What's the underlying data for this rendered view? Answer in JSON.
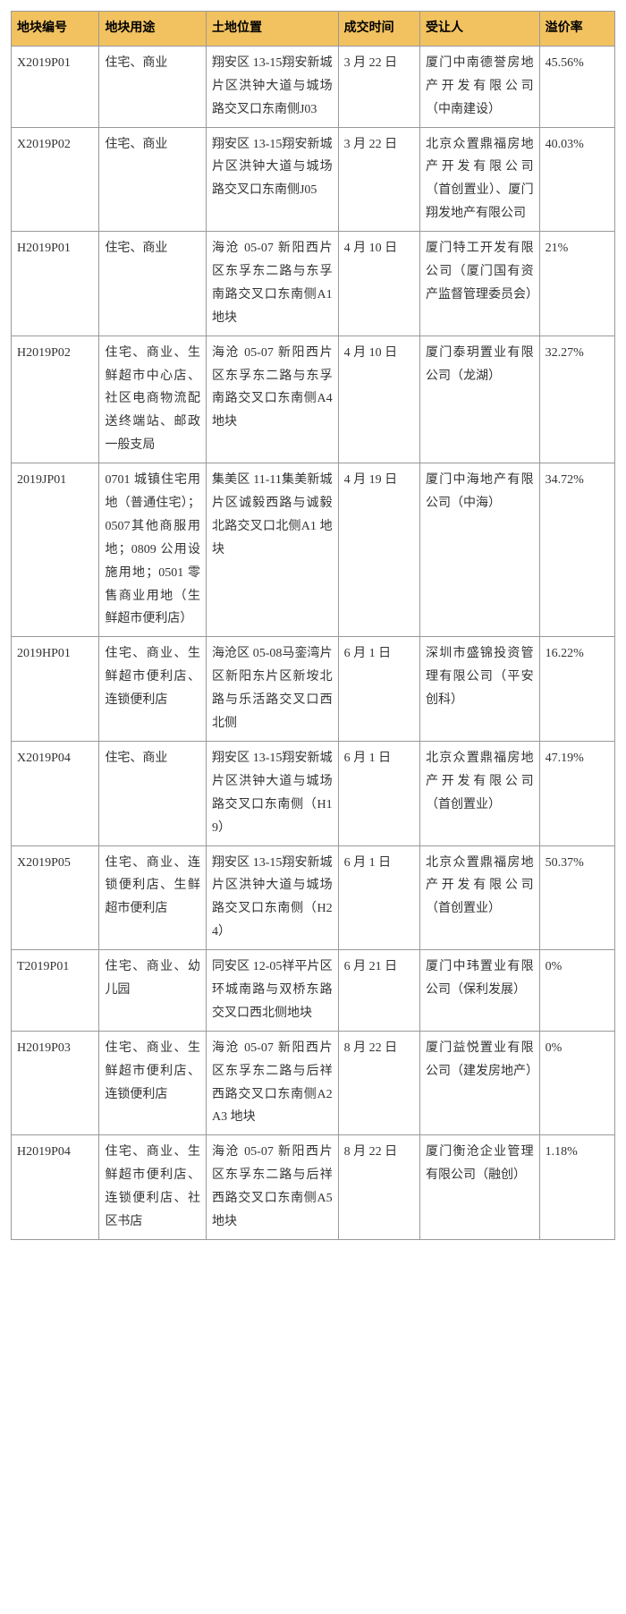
{
  "table": {
    "header_bg_color": "#f2c260",
    "border_color": "#999999",
    "font_family": "SimSun",
    "font_size": 14,
    "columns": [
      "地块编号",
      "地块用途",
      "土地位置",
      "成交时间",
      "受让人",
      "溢价率"
    ],
    "rows": [
      {
        "code": "X2019P01",
        "usage": "住宅、商业",
        "location": "翔安区 13-15翔安新城片区洪钟大道与城场路交叉口东南侧J03",
        "date": "3 月 22 日",
        "assignee": "厦门中南德誉房地产开发有限公司（中南建设）",
        "premium": "45.56%"
      },
      {
        "code": "X2019P02",
        "usage": "住宅、商业",
        "location": "翔安区 13-15翔安新城片区洪钟大道与城场路交叉口东南侧J05",
        "date": "3 月 22 日",
        "assignee": "北京众置鼎福房地产开发有限公司（首创置业）、厦门翔发地产有限公司",
        "premium": "40.03%"
      },
      {
        "code": "H2019P01",
        "usage": "住宅、商业",
        "location": "海沧 05-07 新阳西片区东孚东二路与东孚南路交叉口东南侧A1 地块",
        "date": "4 月 10 日",
        "assignee": "厦门特工开发有限公司（厦门国有资产监督管理委员会）",
        "premium": "21%"
      },
      {
        "code": "H2019P02",
        "usage": "住宅、商业、生鲜超市中心店、社区电商物流配送终端站、邮政一般支局",
        "location": "海沧 05-07 新阳西片区东孚东二路与东孚南路交叉口东南侧A4 地块",
        "date": "4 月 10 日",
        "assignee": "厦门泰玥置业有限公司（龙湖）",
        "premium": "32.27%"
      },
      {
        "code": "2019JP01",
        "usage": "0701 城镇住宅用地（普通住宅）；0507其他商服用地；0809 公用设施用地；0501 零售商业用地（生鲜超市便利店）",
        "location": "集美区 11-11集美新城片区诚毅西路与诚毅北路交叉口北侧A1 地块",
        "date": "4 月 19 日",
        "assignee": "厦门中海地产有限公司（中海）",
        "premium": "34.72%"
      },
      {
        "code": "2019HP01",
        "usage": "住宅、商业、生鲜超市便利店、连锁便利店",
        "location": "海沧区 05-08马銮湾片区新阳东片区新垵北路与乐活路交叉口西北侧",
        "date": "6 月 1 日",
        "assignee": "深圳市盛锦投资管理有限公司（平安创科）",
        "premium": "16.22%"
      },
      {
        "code": "X2019P04",
        "usage": "住宅、商业",
        "location": "翔安区 13-15翔安新城片区洪钟大道与城场路交叉口东南侧（H19）",
        "date": "6 月 1 日",
        "assignee": "北京众置鼎福房地产开发有限公司（首创置业）",
        "premium": "47.19%"
      },
      {
        "code": "X2019P05",
        "usage": "住宅、商业、连锁便利店、生鲜超市便利店",
        "location": "翔安区 13-15翔安新城片区洪钟大道与城场路交叉口东南侧（H24）",
        "date": "6 月 1 日",
        "assignee": "北京众置鼎福房地产开发有限公司（首创置业）",
        "premium": "50.37%"
      },
      {
        "code": "T2019P01",
        "usage": "住宅、商业、幼儿园",
        "location": "同安区 12-05祥平片区环城南路与双桥东路交叉口西北侧地块",
        "date": "6 月 21 日",
        "assignee": "厦门中玮置业有限公司（保利发展）",
        "premium": "0%"
      },
      {
        "code": "H2019P03",
        "usage": "住宅、商业、生鲜超市便利店、连锁便利店",
        "location": "海沧 05-07 新阳西片区东孚东二路与后祥西路交叉口东南侧A2A3 地块",
        "date": "8 月 22 日",
        "assignee": "厦门益悦置业有限公司（建发房地产）",
        "premium": "0%"
      },
      {
        "code": "H2019P04",
        "usage": "住宅、商业、生鲜超市便利店、连锁便利店、社区书店",
        "location": "海沧 05-07 新阳西片区东孚东二路与后祥西路交叉口东南侧A5 地块",
        "date": "8 月 22 日",
        "assignee": "厦门衡沧企业管理有限公司（融创）",
        "premium": "1.18%"
      }
    ]
  }
}
